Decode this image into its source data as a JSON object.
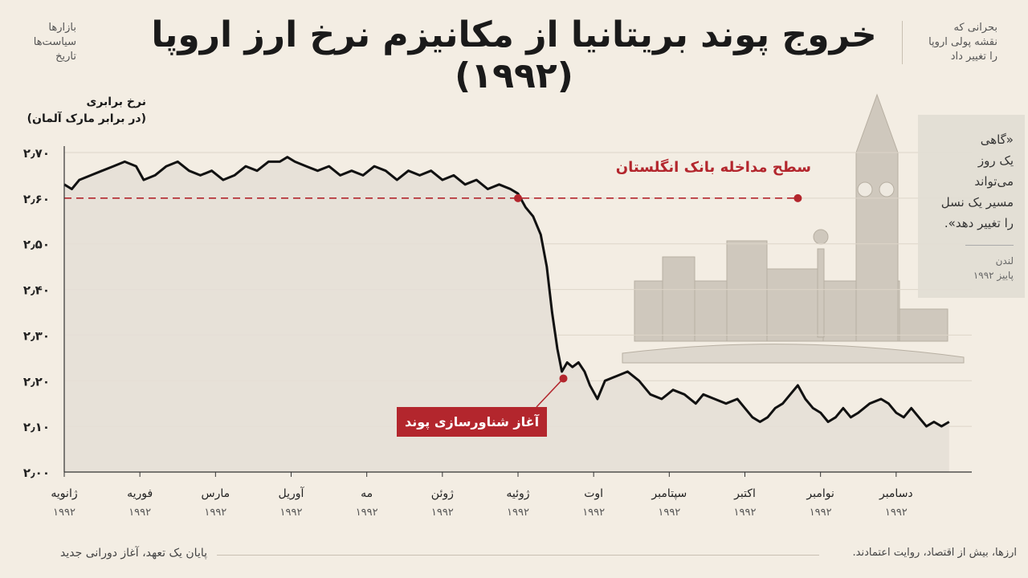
{
  "title": "خروج پوند بریتانیا از مکانیزم نرخ ارز اروپا (۱۹۹۲)",
  "left_note": "بازارها\nسیاست‌ها\nتاریخ",
  "right_note": "بحرانی که\nنقشه پولی اروپا\nرا تغییر داد",
  "quote": {
    "text": "«گاهی\nیک روز\nمی‌تواند\nمسیر یک نسل\nرا تغییر دهد».",
    "place": "لندن\nپاییز ۱۹۹۲"
  },
  "footer": {
    "left": "پایان یک تعهد، آغاز دورانی جدید",
    "right": "ارزها، بیش از اقتصاد، روایت اعتمادند."
  },
  "colors": {
    "accent": "#b3262d",
    "line": "#111111",
    "area": "#e6dfd6"
  },
  "icons": [
    "big-ben-illustration",
    "westminster-palace-illustration"
  ],
  "chart_data": {
    "type": "line",
    "title": "",
    "ylabel": "نرخ برابری\n(در برابر مارک آلمان)",
    "xlabel": "",
    "ylim": [
      2.0,
      2.7
    ],
    "y_ticks": [
      2.0,
      2.1,
      2.2,
      2.3,
      2.4,
      2.5,
      2.6,
      2.7
    ],
    "y_tick_labels": [
      "۲٫۰۰",
      "۲٫۱۰",
      "۲٫۲۰",
      "۲٫۳۰",
      "۲٫۴۰",
      "۲٫۵۰",
      "۲٫۶۰",
      "۲٫۷۰"
    ],
    "x_domain": [
      0,
      12
    ],
    "months": [
      {
        "name": "ژانویه",
        "year": "۱۹۹۲"
      },
      {
        "name": "فوریه",
        "year": "۱۹۹۲"
      },
      {
        "name": "مارس",
        "year": "۱۹۹۲"
      },
      {
        "name": "آوریل",
        "year": "۱۹۹۲"
      },
      {
        "name": "مه",
        "year": "۱۹۹۲"
      },
      {
        "name": "ژوئن",
        "year": "۱۹۹۲"
      },
      {
        "name": "ژوئیه",
        "year": "۱۹۹۲"
      },
      {
        "name": "اوت",
        "year": "۱۹۹۲"
      },
      {
        "name": "سپتامبر",
        "year": "۱۹۹۲"
      },
      {
        "name": "اکتبر",
        "year": "۱۹۹۲"
      },
      {
        "name": "نوامبر",
        "year": "۱۹۹۲"
      },
      {
        "name": "دسامبر",
        "year": "۱۹۹۲"
      }
    ],
    "series": [
      {
        "points": [
          [
            0.0,
            2.63
          ],
          [
            0.1,
            2.62
          ],
          [
            0.2,
            2.64
          ],
          [
            0.35,
            2.65
          ],
          [
            0.5,
            2.66
          ],
          [
            0.65,
            2.67
          ],
          [
            0.8,
            2.68
          ],
          [
            0.95,
            2.67
          ],
          [
            1.05,
            2.64
          ],
          [
            1.2,
            2.65
          ],
          [
            1.35,
            2.67
          ],
          [
            1.5,
            2.68
          ],
          [
            1.65,
            2.66
          ],
          [
            1.8,
            2.65
          ],
          [
            1.95,
            2.66
          ],
          [
            2.1,
            2.64
          ],
          [
            2.25,
            2.65
          ],
          [
            2.4,
            2.67
          ],
          [
            2.55,
            2.66
          ],
          [
            2.7,
            2.68
          ],
          [
            2.85,
            2.68
          ],
          [
            2.95,
            2.69
          ],
          [
            3.05,
            2.68
          ],
          [
            3.2,
            2.67
          ],
          [
            3.35,
            2.66
          ],
          [
            3.5,
            2.67
          ],
          [
            3.65,
            2.65
          ],
          [
            3.8,
            2.66
          ],
          [
            3.95,
            2.65
          ],
          [
            4.1,
            2.67
          ],
          [
            4.25,
            2.66
          ],
          [
            4.4,
            2.64
          ],
          [
            4.55,
            2.66
          ],
          [
            4.7,
            2.65
          ],
          [
            4.85,
            2.66
          ],
          [
            5.0,
            2.64
          ],
          [
            5.15,
            2.65
          ],
          [
            5.3,
            2.63
          ],
          [
            5.45,
            2.64
          ],
          [
            5.6,
            2.62
          ],
          [
            5.75,
            2.63
          ],
          [
            5.9,
            2.62
          ],
          [
            6.0,
            2.61
          ],
          [
            6.1,
            2.58
          ],
          [
            6.2,
            2.56
          ],
          [
            6.3,
            2.52
          ],
          [
            6.38,
            2.45
          ],
          [
            6.45,
            2.35
          ],
          [
            6.52,
            2.27
          ],
          [
            6.58,
            2.22
          ],
          [
            6.65,
            2.24
          ],
          [
            6.72,
            2.23
          ],
          [
            6.8,
            2.24
          ],
          [
            6.88,
            2.22
          ],
          [
            6.95,
            2.19
          ],
          [
            7.05,
            2.16
          ],
          [
            7.15,
            2.2
          ],
          [
            7.3,
            2.21
          ],
          [
            7.45,
            2.22
          ],
          [
            7.6,
            2.2
          ],
          [
            7.75,
            2.17
          ],
          [
            7.9,
            2.16
          ],
          [
            8.05,
            2.18
          ],
          [
            8.2,
            2.17
          ],
          [
            8.35,
            2.15
          ],
          [
            8.45,
            2.17
          ],
          [
            8.6,
            2.16
          ],
          [
            8.75,
            2.15
          ],
          [
            8.9,
            2.16
          ],
          [
            9.0,
            2.14
          ],
          [
            9.1,
            2.12
          ],
          [
            9.2,
            2.11
          ],
          [
            9.3,
            2.12
          ],
          [
            9.4,
            2.14
          ],
          [
            9.5,
            2.15
          ],
          [
            9.6,
            2.17
          ],
          [
            9.7,
            2.19
          ],
          [
            9.8,
            2.16
          ],
          [
            9.9,
            2.14
          ],
          [
            10.0,
            2.13
          ],
          [
            10.1,
            2.11
          ],
          [
            10.2,
            2.12
          ],
          [
            10.3,
            2.14
          ],
          [
            10.4,
            2.12
          ],
          [
            10.5,
            2.13
          ],
          [
            10.65,
            2.15
          ],
          [
            10.8,
            2.16
          ],
          [
            10.9,
            2.15
          ],
          [
            11.0,
            2.13
          ],
          [
            11.1,
            2.12
          ],
          [
            11.2,
            2.14
          ],
          [
            11.3,
            2.12
          ],
          [
            11.4,
            2.1
          ],
          [
            11.5,
            2.11
          ],
          [
            11.6,
            2.1
          ],
          [
            11.7,
            2.11
          ]
        ]
      }
    ],
    "reference_line": {
      "value": 2.6,
      "label": "سطح مداخله بانک انگلستان",
      "x_range": [
        0,
        9.7
      ]
    },
    "annotations": [
      {
        "label": "سطح مداخله بانک انگلستان",
        "x": 6.0,
        "y": 2.6
      },
      {
        "label": "آغاز شناورسازی پوند",
        "x": 6.6,
        "y": 2.205
      }
    ]
  }
}
